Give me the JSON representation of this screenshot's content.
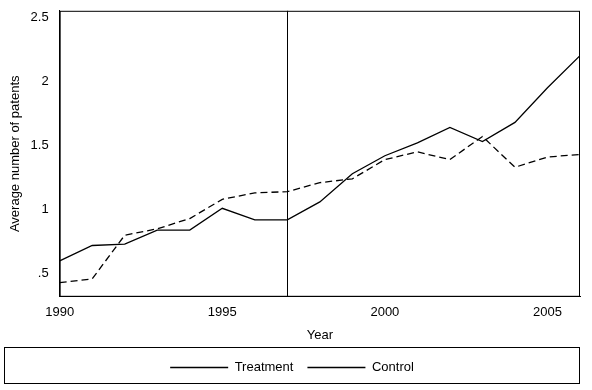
{
  "chart_data": {
    "type": "line",
    "x_label": "Year",
    "y_label": "Average number of patents",
    "x": [
      1990,
      1991,
      1992,
      1993,
      1994,
      1995,
      1996,
      1997,
      1998,
      1999,
      2000,
      2001,
      2002,
      2003,
      2004,
      2005,
      2006
    ],
    "series": [
      {
        "name": "Treatment",
        "color": "#000000",
        "line_style": "solid",
        "values": [
          0.6,
          0.72,
          0.73,
          0.84,
          0.84,
          1.01,
          0.92,
          0.92,
          1.06,
          1.28,
          1.42,
          1.52,
          1.64,
          1.53,
          1.68,
          1.95,
          2.2
        ]
      },
      {
        "name": "Control",
        "color": "#000000",
        "line_style": "dashed",
        "values": [
          0.43,
          0.46,
          0.8,
          0.85,
          0.93,
          1.08,
          1.13,
          1.14,
          1.21,
          1.24,
          1.39,
          1.45,
          1.39,
          1.57,
          1.33,
          1.41,
          1.43
        ]
      }
    ],
    "vline": 1997,
    "xlim": [
      1990,
      2006
    ],
    "xticks": [
      1990,
      1995,
      2000,
      2005
    ],
    "ylim": [
      0.32,
      2.55
    ],
    "yticks": [
      {
        "value": 0.5,
        "label": ".5"
      },
      1,
      1.5,
      2,
      2.5
    ],
    "grid": false,
    "legend": "bottom"
  }
}
